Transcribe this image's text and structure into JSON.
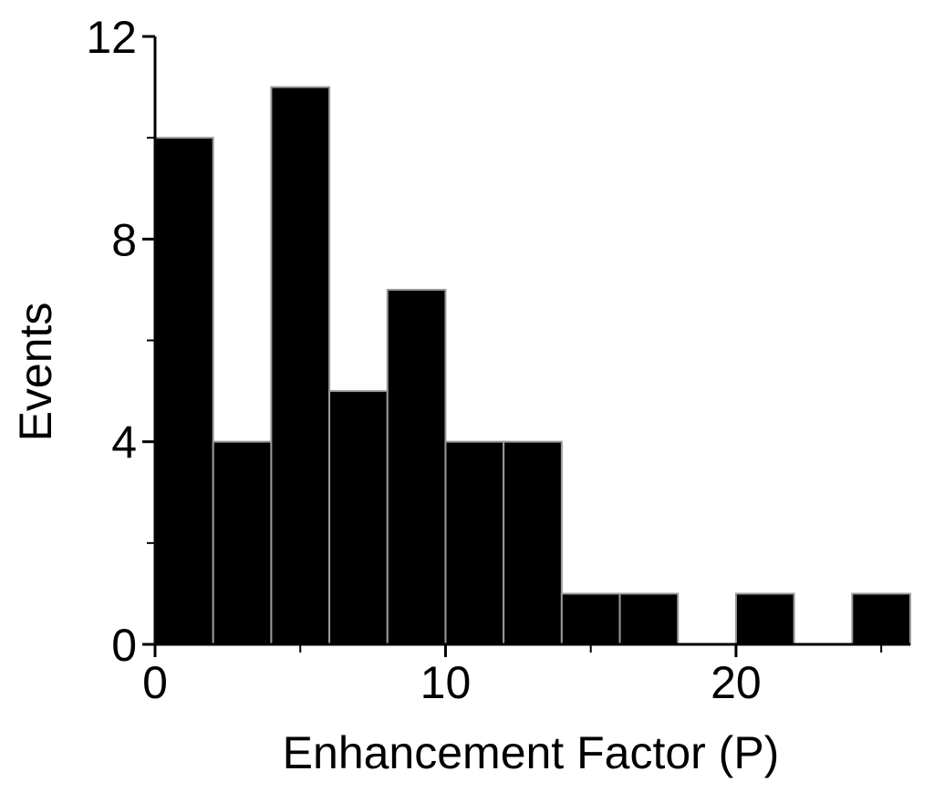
{
  "chart_data": {
    "type": "bar",
    "title": "",
    "xlabel": "Enhancement Factor (P)",
    "ylabel": "Events",
    "bin_edges": [
      0,
      2,
      4,
      6,
      8,
      10,
      12,
      14,
      16,
      18,
      20,
      22,
      24,
      26
    ],
    "values": [
      10,
      4,
      11,
      5,
      7,
      4,
      4,
      1,
      1,
      0,
      1,
      0,
      1
    ],
    "xlim": [
      0,
      26
    ],
    "ylim": [
      0,
      12
    ],
    "x_ticks": [
      0,
      10,
      20
    ],
    "x_ticks_minor": [
      5,
      15,
      25
    ],
    "y_ticks": [
      0,
      4,
      8,
      12
    ],
    "y_ticks_minor": [
      2,
      6,
      10
    ],
    "grid": false,
    "legend": "none",
    "bar_color": "#000000",
    "bar_edge_color": "#9a9a9a"
  }
}
